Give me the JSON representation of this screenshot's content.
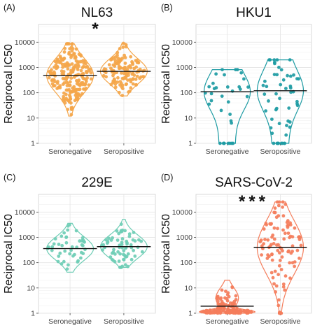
{
  "chart_data": [
    {
      "type": "scatter",
      "panel_label": "(A)",
      "title": "NL63",
      "ylabel": "Reciprocal IC50",
      "y_scale": "log",
      "ylim": [
        1,
        10000
      ],
      "yticks": [
        "1",
        "10",
        "100",
        "1000",
        "10000"
      ],
      "categories": [
        "Seronegative",
        "Seropositive"
      ],
      "color": "#F4A64A",
      "significance": "*",
      "series": [
        {
          "category": "Seronegative",
          "median": 480,
          "violin_min": 12,
          "violin_max": 8600,
          "points_shown": 220
        },
        {
          "category": "Seropositive",
          "median": 700,
          "violin_min": 75,
          "violin_max": 9000,
          "points_shown": 130
        }
      ]
    },
    {
      "type": "scatter",
      "panel_label": "(B)",
      "title": "HKU1",
      "ylabel": "Reciprocal IC50",
      "y_scale": "log",
      "ylim": [
        1,
        10000
      ],
      "yticks": [
        "1",
        "10",
        "100",
        "1000",
        "10000"
      ],
      "categories": [
        "Seronegative",
        "Seropositive"
      ],
      "color": "#1D9BA3",
      "significance": "",
      "series": [
        {
          "category": "Seronegative",
          "median": 110,
          "violin_min": 1,
          "violin_max": 820,
          "points_shown": 35
        },
        {
          "category": "Seropositive",
          "median": 120,
          "violin_min": 1,
          "violin_max": 2000,
          "points_shown": 55
        }
      ]
    },
    {
      "type": "scatter",
      "panel_label": "(C)",
      "title": "229E",
      "ylabel": "Reciprocal IC50",
      "y_scale": "log",
      "ylim": [
        1,
        10000
      ],
      "yticks": [
        "1",
        "10",
        "100",
        "1000",
        "10000"
      ],
      "categories": [
        "Seronegative",
        "Seropositive"
      ],
      "color": "#6ECDB5",
      "significance": "",
      "series": [
        {
          "category": "Seronegative",
          "median": 360,
          "violin_min": 42,
          "violin_max": 3600,
          "points_shown": 45
        },
        {
          "category": "Seropositive",
          "median": 430,
          "violin_min": 65,
          "violin_max": 5200,
          "points_shown": 70
        }
      ]
    },
    {
      "type": "scatter",
      "panel_label": "(D)",
      "title": "SARS-CoV-2",
      "ylabel": "Reciprocal IC50",
      "y_scale": "log",
      "ylim": [
        1,
        10000
      ],
      "yticks": [
        "1",
        "10",
        "100",
        "1000",
        "10000"
      ],
      "categories": [
        "Seronegative",
        "Seropositive"
      ],
      "color": "#F47D5B",
      "significance": "***",
      "series": [
        {
          "category": "Seronegative",
          "median": 1.9,
          "violin_min": 1,
          "violin_max": 20,
          "points_shown": 150
        },
        {
          "category": "Seropositive",
          "median": 400,
          "violin_min": 1,
          "violin_max": 25000,
          "points_shown": 110
        }
      ]
    }
  ]
}
